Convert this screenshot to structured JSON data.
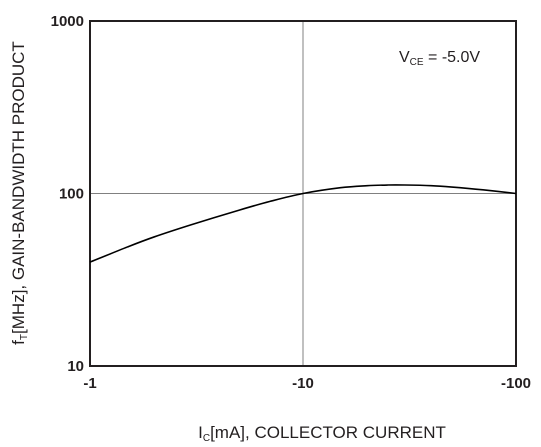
{
  "chart_data": {
    "type": "line",
    "title": "",
    "xlabel": {
      "main": "I",
      "sub": "C",
      "rest": "[mA], COLLECTOR CURRENT"
    },
    "ylabel": {
      "main": "f",
      "sub": "T",
      "rest": "[MHz], GAIN-BANDWIDTH PRODUCT"
    },
    "x_scale": "log",
    "y_scale": "log",
    "x_ticks": [
      {
        "value": 1,
        "label": "-1"
      },
      {
        "value": 10,
        "label": "-10"
      },
      {
        "value": 100,
        "label": "-100"
      }
    ],
    "y_ticks": [
      {
        "value": 10,
        "label": "10"
      },
      {
        "value": 100,
        "label": "100"
      },
      {
        "value": 1000,
        "label": "1000"
      }
    ],
    "xlim": [
      1,
      100
    ],
    "ylim": [
      10,
      1000
    ],
    "grid": true,
    "annotation": {
      "main": "V",
      "sub": "CE",
      "rest": " = -5.0V"
    },
    "series": [
      {
        "x": [
          1,
          1.5,
          2,
          3,
          5,
          7,
          10,
          15,
          20,
          25,
          30,
          40,
          50,
          70,
          100
        ],
        "y": [
          40,
          49,
          56,
          66,
          80,
          90,
          100,
          108,
          111,
          112,
          112,
          111,
          109,
          105,
          100
        ]
      }
    ]
  }
}
